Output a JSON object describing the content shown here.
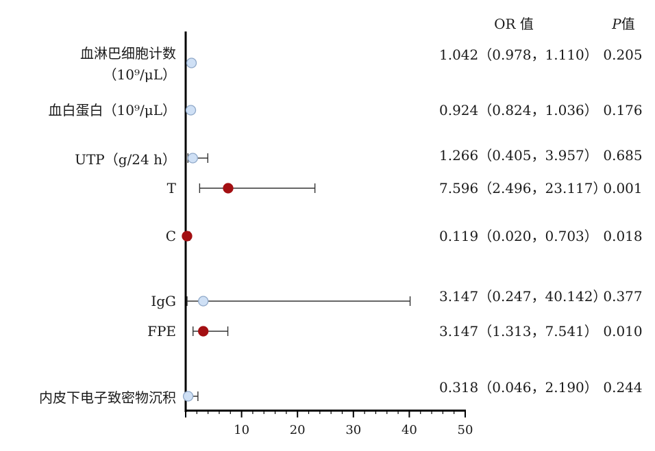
{
  "chart_data": {
    "type": "forest",
    "headers": {
      "or": "OR 值",
      "p_italic": "P",
      "p_suffix": "值"
    },
    "x_ticks": [
      10,
      20,
      30,
      40,
      50
    ],
    "xlim": [
      0,
      50
    ],
    "rows": [
      {
        "label_lines": [
          "血淋巴细胞计数",
          "（10⁹/μL）"
        ],
        "or": 1.042,
        "lo": 0.978,
        "hi": 1.11,
        "or_text": "1.042（0.978，1.110）",
        "p_text": "0.205",
        "significant": false
      },
      {
        "label_lines": [
          "血白蛋白（10⁹/μL）"
        ],
        "or": 0.924,
        "lo": 0.824,
        "hi": 1.036,
        "or_text": "0.924（0.824，1.036）",
        "p_text": "0.176",
        "significant": false
      },
      {
        "label_lines": [
          "UTP（g/24 h）"
        ],
        "or": 1.266,
        "lo": 0.405,
        "hi": 3.957,
        "or_text": "1.266（0.405，3.957）",
        "p_text": "0.685",
        "significant": false
      },
      {
        "label_lines": [
          "T"
        ],
        "or": 7.596,
        "lo": 2.496,
        "hi": 23.117,
        "or_text": "7.596（2.496，23.117）",
        "p_text": "0.001",
        "significant": true
      },
      {
        "label_lines": [
          "C"
        ],
        "or": 0.119,
        "lo": 0.02,
        "hi": 0.703,
        "or_text": "0.119（0.020，0.703）",
        "p_text": "0.018",
        "significant": true
      },
      {
        "label_lines": [
          "IgG"
        ],
        "or": 3.147,
        "lo": 0.247,
        "hi": 40.142,
        "or_text": "3.147（0.247，40.142）",
        "p_text": "0.377",
        "significant": false
      },
      {
        "label_lines": [
          "FPE"
        ],
        "or": 3.147,
        "lo": 1.313,
        "hi": 7.541,
        "or_text": "3.147（1.313，7.541）",
        "p_text": "0.010",
        "significant": true
      },
      {
        "label_lines": [
          "内皮下电子致密物沉积"
        ],
        "or": 0.318,
        "lo": 0.046,
        "hi": 2.19,
        "or_text": "0.318（0.046，2.190）",
        "p_text": "0.244",
        "significant": false
      }
    ],
    "colors": {
      "significant_fill": "#a30f12",
      "nonsignificant_fill": "#cfe0f5",
      "nonsignificant_stroke": "#8fa8c8",
      "axis": "#000000",
      "whisker": "#333333"
    }
  }
}
